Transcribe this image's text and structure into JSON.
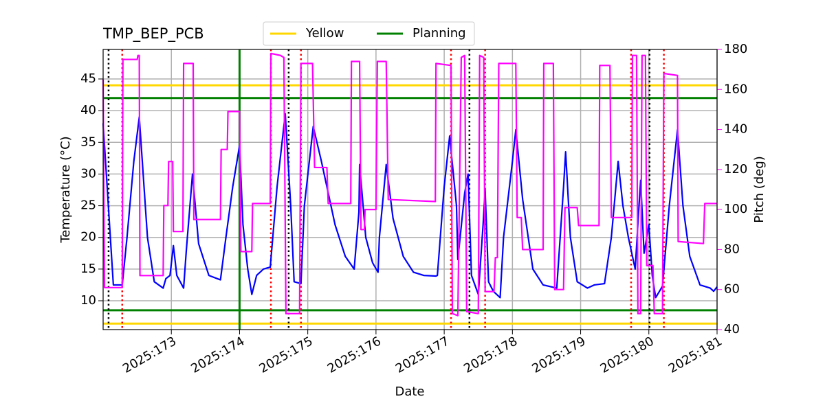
{
  "chart_data": {
    "type": "line",
    "title": "TMP_BEP_PCB",
    "x_label": "Date",
    "y_label": "Temperature (°C)",
    "y2_label": "Pitch (deg)",
    "xlim": [
      172.0,
      181.0
    ],
    "xticks": [
      {
        "value": 173,
        "label": "2025:173"
      },
      {
        "value": 174,
        "label": "2025:174"
      },
      {
        "value": 175,
        "label": "2025:175"
      },
      {
        "value": 176,
        "label": "2025:176"
      },
      {
        "value": 177,
        "label": "2025:177"
      },
      {
        "value": 178,
        "label": "2025:178"
      },
      {
        "value": 179,
        "label": "2025:179"
      },
      {
        "value": 180,
        "label": "2025:180"
      },
      {
        "value": 181,
        "label": "2025:181"
      }
    ],
    "ylim": [
      5.45,
      49.66
    ],
    "yticks": [
      10,
      15,
      20,
      25,
      30,
      35,
      40,
      45
    ],
    "y2lim": [
      40,
      180
    ],
    "y2ticks": [
      40,
      60,
      80,
      100,
      120,
      140,
      160,
      180
    ],
    "y2_color": "#ff00ff",
    "grid": true,
    "legend": "top",
    "series": [
      {
        "color": "#0000ff",
        "x": [
          172.0,
          172.15,
          172.28,
          172.35,
          172.45,
          172.53,
          172.65,
          172.75,
          172.88,
          172.92,
          172.98,
          173.03,
          173.08,
          173.18,
          173.22,
          173.31,
          173.4,
          173.55,
          173.72,
          173.8,
          173.9,
          174.0,
          174.05,
          174.12,
          174.18,
          174.25,
          174.35,
          174.45,
          174.55,
          174.67,
          174.75,
          174.8,
          174.9,
          174.95,
          175.08,
          175.2,
          175.4,
          175.55,
          175.68,
          175.75,
          175.76,
          175.85,
          175.95,
          176.03,
          176.05,
          176.15,
          176.25,
          176.4,
          176.55,
          176.7,
          176.88,
          176.9,
          177.0,
          177.08,
          177.18,
          177.2,
          177.3,
          177.35,
          177.4,
          177.5,
          177.57,
          177.6,
          177.65,
          177.72,
          177.82,
          177.87,
          178.0,
          178.05,
          178.15,
          178.3,
          178.45,
          178.65,
          178.75,
          178.78,
          178.85,
          178.95,
          179.1,
          179.2,
          179.35,
          179.45,
          179.55,
          179.62,
          179.7,
          179.8,
          179.85,
          179.88,
          179.93,
          180.0,
          180.05,
          180.1,
          180.2,
          180.3,
          180.42,
          180.5,
          180.6,
          180.75,
          180.9,
          180.95,
          181.0
        ],
        "values": [
          38,
          12.5,
          12.5,
          20,
          32,
          39,
          20,
          13,
          12,
          13.5,
          14,
          18.7,
          14,
          12,
          18,
          30,
          19,
          14,
          13.3,
          20,
          28,
          34.5,
          22,
          15,
          11,
          14,
          15,
          15.3,
          28,
          39.5,
          25,
          13,
          12.7,
          25,
          37.5,
          32,
          22,
          17,
          15,
          24,
          31.5,
          20,
          16,
          14.5,
          20,
          31.5,
          23,
          17,
          14.5,
          14,
          13.9,
          14,
          28,
          36,
          25,
          16.5,
          27,
          30,
          14,
          11,
          22,
          27.5,
          13,
          11.5,
          10.5,
          20,
          32,
          37,
          26,
          15,
          12.5,
          12,
          28,
          33.5,
          20,
          13,
          12,
          12.5,
          12.7,
          20,
          32,
          25,
          20,
          15,
          24,
          29,
          17.5,
          22,
          14,
          10.5,
          12.3,
          25,
          37,
          25,
          17,
          12.5,
          12,
          11.5,
          12.2
        ]
      },
      {
        "color": "#ff00ff",
        "axis": "y2",
        "x": [
          172.0,
          172.02,
          172.28,
          172.29,
          172.5,
          172.51,
          172.53,
          172.54,
          172.88,
          172.89,
          172.95,
          172.96,
          173.02,
          173.03,
          173.17,
          173.18,
          173.32,
          173.33,
          173.72,
          173.73,
          173.82,
          173.83,
          174.0,
          174.02,
          174.18,
          174.19,
          174.45,
          174.46,
          174.6,
          174.65,
          174.68,
          174.88,
          174.9,
          175.07,
          175.1,
          175.28,
          175.3,
          175.63,
          175.64,
          175.76,
          175.78,
          175.83,
          175.84,
          176.0,
          176.02,
          176.15,
          176.18,
          176.87,
          176.88,
          177.1,
          177.12,
          177.2,
          177.25,
          177.3,
          177.33,
          177.5,
          177.52,
          177.58,
          177.6,
          177.73,
          177.75,
          177.78,
          177.8,
          178.05,
          178.07,
          178.13,
          178.15,
          178.45,
          178.46,
          178.6,
          178.62,
          178.75,
          178.77,
          178.95,
          178.97,
          179.27,
          179.28,
          179.43,
          179.45,
          179.75,
          179.76,
          179.82,
          179.84,
          179.88,
          179.9,
          179.95,
          179.97,
          180.06,
          180.08,
          180.2,
          180.22,
          180.42,
          180.43,
          180.8,
          180.82,
          181.0
        ],
        "values": [
          165,
          61,
          61,
          175,
          175,
          177,
          177,
          67,
          67,
          102,
          102,
          124,
          124,
          89,
          89,
          173,
          173,
          95,
          95,
          130,
          130,
          149,
          149,
          79,
          79,
          103,
          103,
          178,
          177,
          176,
          48,
          48,
          173,
          173,
          121,
          121,
          103,
          103,
          174,
          174,
          90,
          90,
          100,
          100,
          174,
          174,
          105,
          104,
          173,
          172,
          48,
          47,
          176,
          177,
          49,
          48,
          177,
          176,
          59,
          59,
          76,
          76,
          173,
          173,
          96,
          96,
          80,
          80,
          173,
          173,
          60,
          60,
          101,
          101,
          92,
          92,
          172,
          172,
          96,
          96,
          177,
          177,
          48,
          48,
          177,
          177,
          72,
          72,
          48,
          48,
          168,
          167,
          84,
          83,
          103,
          103
        ]
      }
    ],
    "limits": [
      {
        "name": "Yellow",
        "color": "#ffd700",
        "values": [
          44,
          6.4
        ]
      },
      {
        "name": "Planning",
        "color": "#008000",
        "values": [
          42,
          8.5
        ]
      }
    ],
    "vlines": [
      {
        "color": "#000000",
        "style": "dotted",
        "x": [
          172.08,
          174.72,
          177.37,
          180.01
        ]
      },
      {
        "color": "#ff0000",
        "style": "dotted",
        "x": [
          172.28,
          174.46,
          174.9,
          177.1,
          177.6,
          179.74,
          180.22
        ]
      },
      {
        "color": "#008000",
        "style": "solid",
        "x": [
          174.0
        ]
      }
    ]
  }
}
